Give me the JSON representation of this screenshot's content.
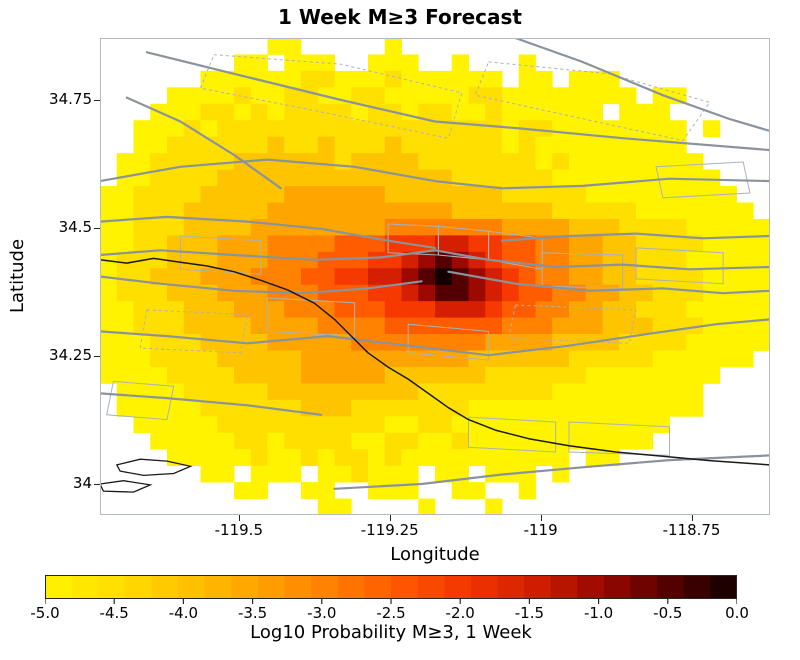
{
  "chart_data": {
    "type": "heatmap",
    "title": "1 Week M≥3 Forecast",
    "xlabel": "Longitude",
    "ylabel": "Latitude",
    "x_tick_labels": [
      "-119.5",
      "-119.25",
      "-119",
      "-118.75"
    ],
    "x_tick_values": [
      -119.5,
      -119.25,
      -119,
      -118.75
    ],
    "y_tick_labels": [
      "34.75",
      "34.5",
      "34.25",
      "34"
    ],
    "y_tick_values": [
      34.75,
      34.5,
      34.25,
      34
    ],
    "lon_range": [
      -119.73,
      -118.62
    ],
    "lat_range": [
      33.94,
      34.87
    ],
    "value_range": [
      -5,
      0
    ],
    "grid": {
      "cols": 40,
      "rows": 29,
      "encoding": "char '.'=no data; chars 0-9 and a = index into level_values (log10 probability)",
      "level_values": [
        -5.0,
        -4.5,
        -4.0,
        -3.5,
        -3.0,
        -2.5,
        -2.0,
        -1.5,
        -1.0,
        -0.5,
        0.0
      ],
      "cells": [
        "..........00.....0......................",
        "........00.000..000..0...0..............",
        "......000000110001000000.00.000.........",
        "....0000100110011000001100000000.00.....",
        "...000110101111011011001000000.000......",
        "..000101111111111111111101100000000.0....",
        "..001111112112111211111101000000000.....",
        ".00111112222221222211111110100000000....",
        ".001111222222222222221111110000000000...",
        "00111122222333333222222211111000000000..",
        "001112222233333333333222222111110000000.",
        "0011122223333333344444443333222111100000",
        "0011222333444455566677665544332211110000",
        "0111222333444555667898765544332211100000",
        "01122233344455667789a9876544332211110000",
        "0111222333444555667899876554433221110000",
        "0011122233344455566677765544332211100000",
        "0011122223333444455555554443332221110000",
        "0001112222333334444444433332222111100000",
        "000111122222333333333322222211111000000.",
        "0000111122223333322222211111100000000...",
        ".00001111122222222211111111000000000....",
        ".00000111111222111111100000000000000....",
        "..00000111111111100110000000000000......",
        "...000001101111001100100000000000.......",
        "....000001001011010000000000.00.........",
        "......00.000.001000.00.000.0............",
        "........00..00..000..00..0..............",
        ".............00....0...0................"
      ]
    },
    "colorbar": {
      "label": "Log10 Probability M≥3, 1 Week",
      "tick_labels": [
        "-5.0",
        "-4.5",
        "-4.0",
        "-3.5",
        "-3.0",
        "-2.5",
        "-2.0",
        "-1.5",
        "-1.0",
        "-0.5",
        "0.0"
      ],
      "tick_values": [
        -5,
        -4.5,
        -4,
        -3.5,
        -3,
        -2.5,
        -2,
        -1.5,
        -1,
        -0.5,
        0
      ],
      "stops": [
        [
          0.0,
          "#fff300"
        ],
        [
          0.1,
          "#ffdf00"
        ],
        [
          0.2,
          "#ffc400"
        ],
        [
          0.3,
          "#ffa500"
        ],
        [
          0.4,
          "#ff8300"
        ],
        [
          0.5,
          "#ff5c00"
        ],
        [
          0.6,
          "#f53900"
        ],
        [
          0.7,
          "#d42000"
        ],
        [
          0.8,
          "#9c0900"
        ],
        [
          0.9,
          "#550000"
        ],
        [
          1.0,
          "#120000"
        ]
      ]
    },
    "overlays": {
      "fault_color": "#8a939c",
      "section_color": "#aab2ba",
      "coast_color": "#1a1a1a",
      "fault_lines": [
        [
          [
            0.07,
            0.03
          ],
          [
            0.2,
            0.075
          ],
          [
            0.36,
            0.13
          ],
          [
            0.5,
            0.175
          ],
          [
            0.63,
            0.19
          ],
          [
            0.78,
            0.21
          ],
          [
            1.0,
            0.235
          ]
        ],
        [
          [
            0.0,
            0.3
          ],
          [
            0.12,
            0.27
          ],
          [
            0.25,
            0.255
          ],
          [
            0.38,
            0.27
          ],
          [
            0.5,
            0.3
          ],
          [
            0.6,
            0.315
          ],
          [
            0.72,
            0.31
          ],
          [
            0.85,
            0.295
          ],
          [
            1.0,
            0.3
          ]
        ],
        [
          [
            0.62,
            0.0
          ],
          [
            0.72,
            0.05
          ],
          [
            0.84,
            0.12
          ],
          [
            0.94,
            0.17
          ],
          [
            1.0,
            0.195
          ]
        ],
        [
          [
            0.0,
            0.385
          ],
          [
            0.1,
            0.375
          ],
          [
            0.22,
            0.385
          ],
          [
            0.33,
            0.4
          ],
          [
            0.43,
            0.425
          ],
          [
            0.5,
            0.44
          ]
        ],
        [
          [
            0.0,
            0.455
          ],
          [
            0.09,
            0.445
          ],
          [
            0.2,
            0.455
          ],
          [
            0.32,
            0.465
          ],
          [
            0.42,
            0.46
          ],
          [
            0.5,
            0.445
          ],
          [
            0.58,
            0.465
          ],
          [
            0.68,
            0.48
          ],
          [
            0.78,
            0.475
          ],
          [
            0.88,
            0.485
          ],
          [
            1.0,
            0.48
          ]
        ],
        [
          [
            0.0,
            0.5
          ],
          [
            0.09,
            0.515
          ],
          [
            0.2,
            0.53
          ],
          [
            0.3,
            0.535
          ],
          [
            0.4,
            0.525
          ],
          [
            0.48,
            0.51
          ]
        ],
        [
          [
            0.52,
            0.49
          ],
          [
            0.62,
            0.515
          ],
          [
            0.73,
            0.53
          ],
          [
            0.84,
            0.525
          ],
          [
            0.93,
            0.535
          ],
          [
            1.0,
            0.53
          ]
        ],
        [
          [
            0.6,
            0.425
          ],
          [
            0.7,
            0.415
          ],
          [
            0.8,
            0.41
          ],
          [
            0.9,
            0.42
          ],
          [
            1.0,
            0.415
          ]
        ],
        [
          [
            0.0,
            0.615
          ],
          [
            0.1,
            0.625
          ],
          [
            0.22,
            0.64
          ],
          [
            0.34,
            0.625
          ],
          [
            0.46,
            0.645
          ],
          [
            0.58,
            0.665
          ],
          [
            0.7,
            0.645
          ],
          [
            0.82,
            0.62
          ],
          [
            0.92,
            0.6
          ],
          [
            1.0,
            0.59
          ]
        ],
        [
          [
            0.0,
            0.745
          ],
          [
            0.1,
            0.755
          ],
          [
            0.22,
            0.77
          ],
          [
            0.33,
            0.79
          ]
        ],
        [
          [
            0.35,
            0.945
          ],
          [
            0.48,
            0.935
          ],
          [
            0.6,
            0.915
          ],
          [
            0.72,
            0.9
          ],
          [
            0.85,
            0.885
          ],
          [
            1.0,
            0.875
          ]
        ],
        [
          [
            0.04,
            0.125
          ],
          [
            0.12,
            0.175
          ],
          [
            0.2,
            0.245
          ],
          [
            0.27,
            0.315
          ]
        ]
      ],
      "fault_sections": [
        [
          [
            0.43,
            0.39
          ],
          [
            0.505,
            0.395
          ],
          [
            0.505,
            0.455
          ],
          [
            0.43,
            0.45
          ]
        ],
        [
          [
            0.505,
            0.395
          ],
          [
            0.58,
            0.405
          ],
          [
            0.58,
            0.465
          ],
          [
            0.505,
            0.455
          ]
        ],
        [
          [
            0.58,
            0.405
          ],
          [
            0.66,
            0.42
          ],
          [
            0.66,
            0.485
          ],
          [
            0.58,
            0.465
          ]
        ],
        [
          [
            0.12,
            0.415
          ],
          [
            0.24,
            0.425
          ],
          [
            0.24,
            0.495
          ],
          [
            0.12,
            0.485
          ]
        ],
        [
          [
            0.66,
            0.45
          ],
          [
            0.78,
            0.455
          ],
          [
            0.78,
            0.525
          ],
          [
            0.66,
            0.52
          ]
        ],
        [
          [
            0.8,
            0.44
          ],
          [
            0.93,
            0.45
          ],
          [
            0.93,
            0.515
          ],
          [
            0.8,
            0.505
          ]
        ],
        [
          [
            0.25,
            0.545
          ],
          [
            0.38,
            0.555
          ],
          [
            0.38,
            0.625
          ],
          [
            0.25,
            0.615
          ]
        ],
        [
          [
            0.55,
            0.795
          ],
          [
            0.68,
            0.805
          ],
          [
            0.68,
            0.868
          ],
          [
            0.55,
            0.858
          ]
        ],
        [
          [
            0.7,
            0.805
          ],
          [
            0.85,
            0.815
          ],
          [
            0.85,
            0.875
          ],
          [
            0.7,
            0.868
          ]
        ],
        [
          [
            0.02,
            0.72
          ],
          [
            0.11,
            0.73
          ],
          [
            0.1,
            0.8
          ],
          [
            0.01,
            0.79
          ]
        ],
        [
          [
            0.46,
            0.6
          ],
          [
            0.58,
            0.615
          ],
          [
            0.58,
            0.675
          ],
          [
            0.46,
            0.66
          ]
        ],
        [
          [
            0.83,
            0.27
          ],
          [
            0.96,
            0.26
          ],
          [
            0.97,
            0.325
          ],
          [
            0.84,
            0.335
          ]
        ]
      ],
      "dashed_outlines": [
        [
          [
            0.17,
            0.035
          ],
          [
            0.36,
            0.055
          ],
          [
            0.54,
            0.115
          ],
          [
            0.52,
            0.21
          ],
          [
            0.33,
            0.155
          ],
          [
            0.15,
            0.105
          ]
        ],
        [
          [
            0.58,
            0.05
          ],
          [
            0.76,
            0.075
          ],
          [
            0.91,
            0.135
          ],
          [
            0.87,
            0.215
          ],
          [
            0.69,
            0.16
          ],
          [
            0.56,
            0.12
          ]
        ],
        [
          [
            0.07,
            0.57
          ],
          [
            0.22,
            0.58
          ],
          [
            0.21,
            0.66
          ],
          [
            0.06,
            0.65
          ]
        ],
        [
          [
            0.62,
            0.56
          ],
          [
            0.8,
            0.57
          ],
          [
            0.79,
            0.64
          ],
          [
            0.61,
            0.63
          ]
        ]
      ],
      "coastline": [
        [
          0.0,
          0.465
        ],
        [
          0.04,
          0.472
        ],
        [
          0.08,
          0.462
        ],
        [
          0.12,
          0.47
        ],
        [
          0.16,
          0.478
        ],
        [
          0.2,
          0.49
        ],
        [
          0.24,
          0.508
        ],
        [
          0.28,
          0.528
        ],
        [
          0.32,
          0.556
        ],
        [
          0.35,
          0.59
        ],
        [
          0.375,
          0.625
        ],
        [
          0.4,
          0.66
        ],
        [
          0.43,
          0.69
        ],
        [
          0.46,
          0.715
        ],
        [
          0.49,
          0.745
        ],
        [
          0.52,
          0.775
        ],
        [
          0.55,
          0.8
        ],
        [
          0.59,
          0.822
        ],
        [
          0.64,
          0.84
        ],
        [
          0.7,
          0.855
        ],
        [
          0.77,
          0.868
        ],
        [
          0.84,
          0.877
        ],
        [
          0.91,
          0.886
        ],
        [
          1.0,
          0.895
        ]
      ],
      "islands": [
        [
          [
            0.025,
            0.895
          ],
          [
            0.06,
            0.883
          ],
          [
            0.1,
            0.887
          ],
          [
            0.135,
            0.898
          ],
          [
            0.11,
            0.913
          ],
          [
            0.065,
            0.917
          ],
          [
            0.03,
            0.908
          ]
        ],
        [
          [
            0.0,
            0.935
          ],
          [
            0.035,
            0.928
          ],
          [
            0.075,
            0.937
          ],
          [
            0.05,
            0.952
          ],
          [
            0.005,
            0.95
          ]
        ]
      ]
    }
  }
}
